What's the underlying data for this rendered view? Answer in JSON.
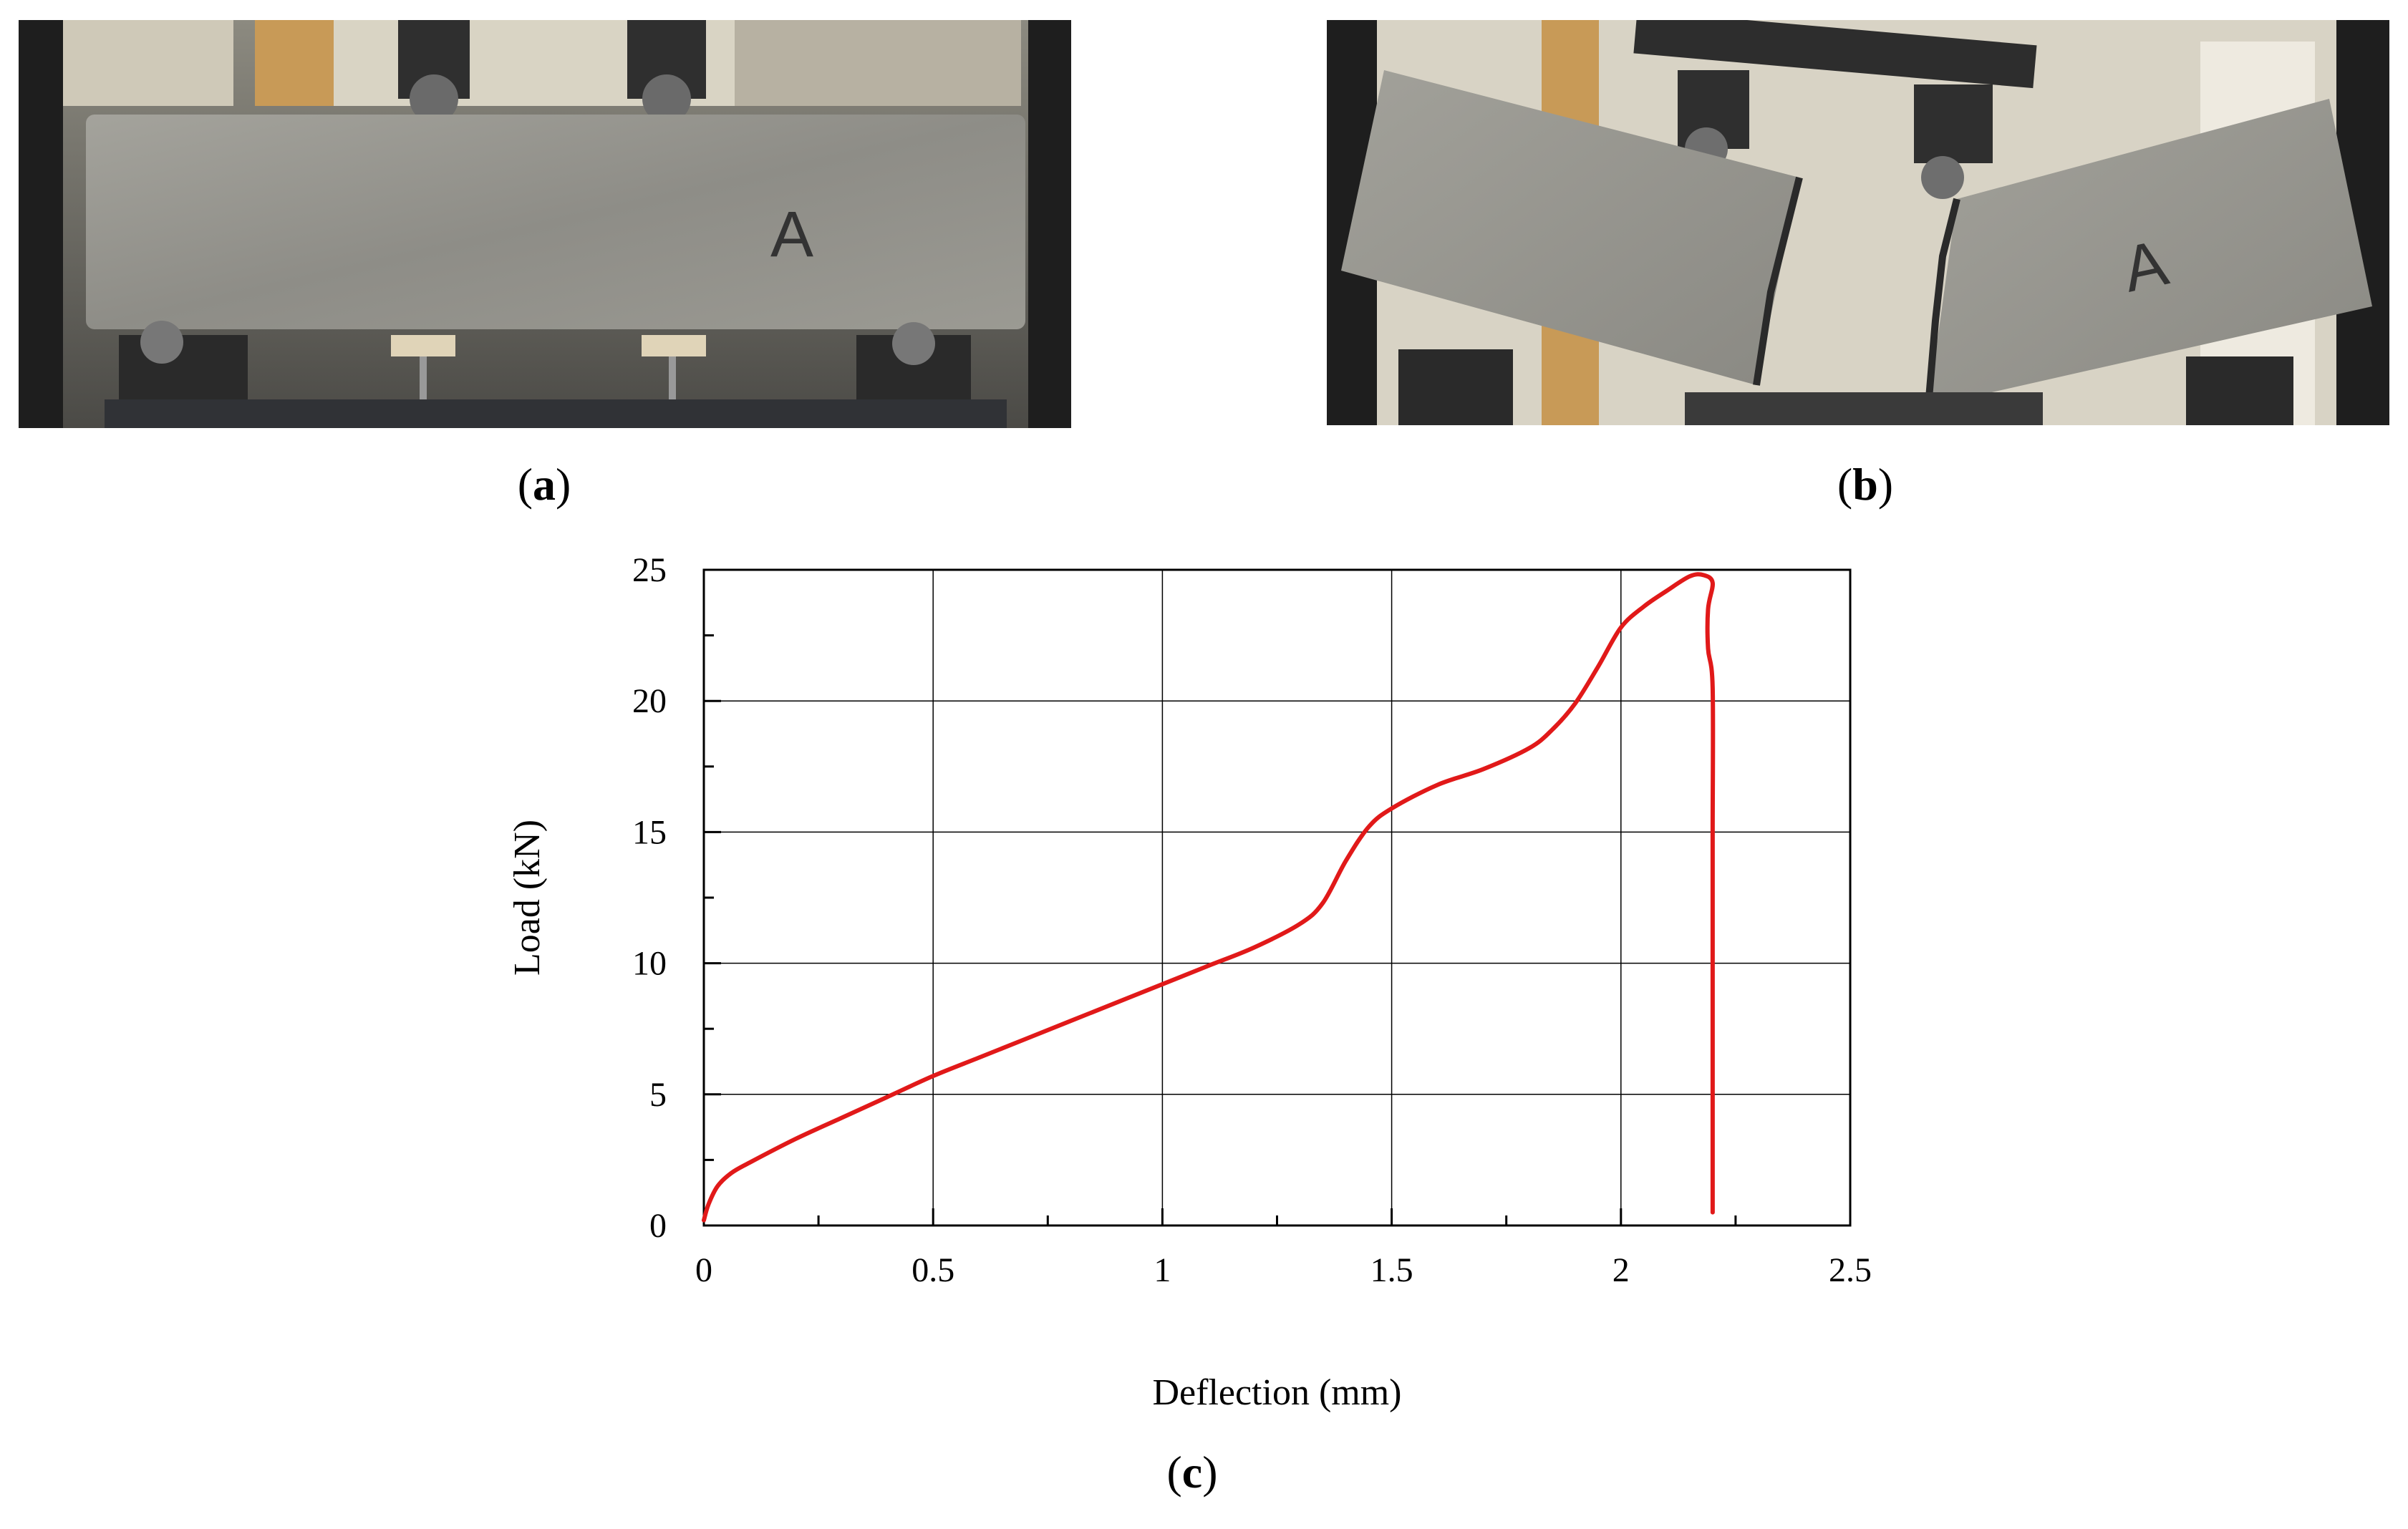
{
  "captions": {
    "a": "a",
    "b": "b",
    "c": "c"
  },
  "photo_a": {
    "marking": "A"
  },
  "photo_b": {
    "marking": "A"
  },
  "colors": {
    "curve": "#e11919",
    "grid": "#000000",
    "background": "#ffffff"
  },
  "chart_data": {
    "type": "line",
    "title": "",
    "xlabel": "Deflection (mm)",
    "ylabel": "Load (kN)",
    "xlim": [
      0,
      2.5
    ],
    "ylim": [
      0,
      25
    ],
    "x_ticks": [
      0,
      0.5,
      1,
      1.5,
      2,
      2.5
    ],
    "x_tick_labels": [
      "0",
      "0.5",
      "1",
      "1.5",
      "2",
      "2.5"
    ],
    "y_ticks": [
      0,
      5,
      10,
      15,
      20,
      25
    ],
    "y_tick_labels": [
      "0",
      "5",
      "10",
      "15",
      "20",
      "25"
    ],
    "grid": true,
    "legend": "none",
    "series": [
      {
        "color": "#e11919",
        "points": [
          [
            0,
            0.2
          ],
          [
            0.01,
            0.8
          ],
          [
            0.03,
            1.5
          ],
          [
            0.06,
            2.0
          ],
          [
            0.1,
            2.4
          ],
          [
            0.2,
            3.3
          ],
          [
            0.3,
            4.1
          ],
          [
            0.4,
            4.9
          ],
          [
            0.5,
            5.7
          ],
          [
            0.6,
            6.4
          ],
          [
            0.7,
            7.1
          ],
          [
            0.8,
            7.8
          ],
          [
            0.9,
            8.5
          ],
          [
            1.0,
            9.2
          ],
          [
            1.1,
            9.9
          ],
          [
            1.2,
            10.6
          ],
          [
            1.3,
            11.5
          ],
          [
            1.35,
            12.3
          ],
          [
            1.4,
            13.9
          ],
          [
            1.45,
            15.2
          ],
          [
            1.5,
            15.9
          ],
          [
            1.6,
            16.8
          ],
          [
            1.7,
            17.4
          ],
          [
            1.8,
            18.2
          ],
          [
            1.85,
            18.9
          ],
          [
            1.9,
            19.9
          ],
          [
            1.95,
            21.3
          ],
          [
            2.0,
            22.8
          ],
          [
            2.05,
            23.6
          ],
          [
            2.1,
            24.2
          ],
          [
            2.15,
            24.75
          ],
          [
            2.18,
            24.8
          ],
          [
            2.2,
            24.5
          ],
          [
            2.19,
            23.5
          ],
          [
            2.19,
            22.0
          ],
          [
            2.2,
            20.5
          ],
          [
            2.2,
            15.0
          ],
          [
            2.2,
            10.0
          ],
          [
            2.2,
            5.0
          ],
          [
            2.2,
            0.5
          ]
        ]
      }
    ]
  }
}
